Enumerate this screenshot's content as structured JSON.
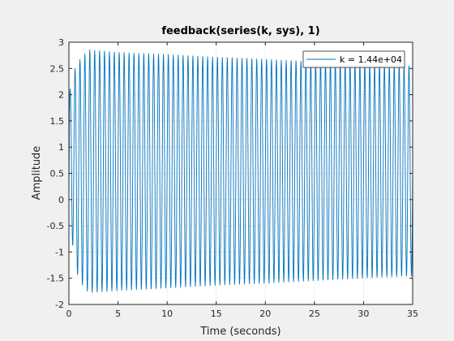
{
  "chart_data": {
    "type": "line",
    "title": "feedback(series(k, sys), 1)",
    "xlabel": "Time (seconds)",
    "ylabel": "Amplitude",
    "xlim": [
      0,
      35
    ],
    "ylim": [
      -2,
      3
    ],
    "xticks": [
      "0",
      "5",
      "10",
      "15",
      "20",
      "25",
      "30",
      "35"
    ],
    "yticks": [
      "-2",
      "-1.5",
      "-1",
      "-0.5",
      "0",
      "0.5",
      "1",
      "1.5",
      "2",
      "2.5",
      "3"
    ],
    "grid": true,
    "legend_position": "top-right",
    "series": [
      {
        "name": "k = 1.44e+04",
        "color": "#0072bd",
        "envelope": {
          "t": [
            0,
            0.5,
            1,
            2,
            5,
            10,
            15,
            20,
            25,
            30,
            35
          ],
          "upper": [
            2.0,
            2.45,
            2.65,
            2.86,
            2.81,
            2.77,
            2.72,
            2.68,
            2.63,
            2.59,
            2.55
          ],
          "lower": [
            -0.2,
            -1.1,
            -1.55,
            -1.78,
            -1.74,
            -1.69,
            -1.64,
            -1.6,
            -1.55,
            -1.5,
            -1.46
          ]
        },
        "oscillation_period": 0.5,
        "steady_state": 0.55
      }
    ]
  }
}
